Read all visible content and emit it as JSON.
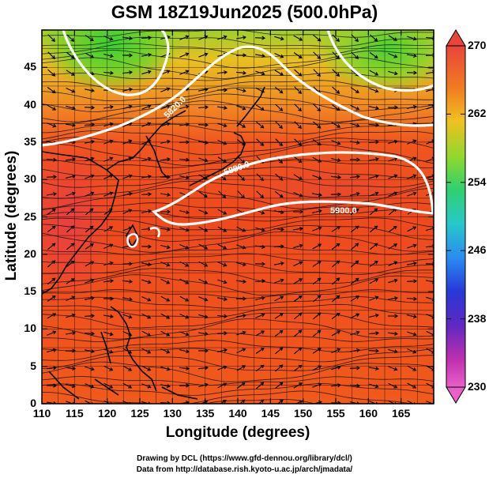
{
  "title": "GSM 18Z19Jun2025 (500.0hPa)",
  "x_axis": {
    "label": "Longitude (degrees)",
    "ticks": [
      "110",
      "115",
      "120",
      "125",
      "130",
      "135",
      "140",
      "145",
      "150",
      "155",
      "160",
      "165"
    ]
  },
  "y_axis": {
    "label": "Latitude  (degrees)",
    "ticks": [
      "0",
      "5",
      "10",
      "15",
      "20",
      "25",
      "30",
      "35",
      "40",
      "45"
    ]
  },
  "colorbar": {
    "labels": [
      "270",
      "262",
      "254",
      "246",
      "238",
      "230"
    ],
    "colors": [
      "#e8453c",
      "#f07a22",
      "#f0c020",
      "#8cd830",
      "#30d070",
      "#28c8c8",
      "#2a8cf0",
      "#2838d8",
      "#6028c0",
      "#c030b0",
      "#e860c8"
    ]
  },
  "map": {
    "lon_range": [
      110,
      170
    ],
    "lat_range": [
      0,
      50
    ],
    "contour_labels": [
      "5820.0",
      "5880.0",
      "5900.0"
    ]
  },
  "credits": [
    "Drawing by DCL (https://www.gfd-dennou.org/library/dcl/)",
    "Data from http://database.rish.kyoto-u.ac.jp/arch/jmadata/"
  ]
}
